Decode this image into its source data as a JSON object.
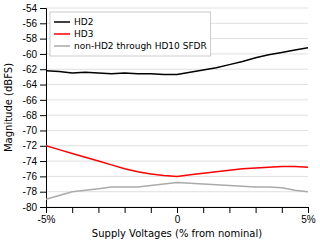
{
  "chart_data": {
    "type": "line",
    "xlabel": "Supply Voltages (% from nominal)",
    "ylabel": "Magnitude (dBFS)",
    "x": [
      -5,
      -4.5,
      -4,
      -3.5,
      -3,
      -2.5,
      -2,
      -1.5,
      -1,
      -0.5,
      0,
      0.5,
      1,
      1.5,
      2,
      2.5,
      3,
      3.5,
      4,
      4.5,
      5
    ],
    "series": [
      {
        "name": "HD2",
        "color": "#000000",
        "values": [
          -62.2,
          -62.3,
          -62.5,
          -62.4,
          -62.5,
          -62.6,
          -62.5,
          -62.6,
          -62.6,
          -62.7,
          -62.7,
          -62.4,
          -62.1,
          -61.8,
          -61.4,
          -61.0,
          -60.5,
          -60.1,
          -59.8,
          -59.5,
          -59.2
        ]
      },
      {
        "name": "HD3",
        "color": "#ff0000",
        "values": [
          -72.0,
          -72.5,
          -73.0,
          -73.5,
          -74.0,
          -74.5,
          -75.0,
          -75.4,
          -75.7,
          -75.9,
          -76.0,
          -75.8,
          -75.6,
          -75.4,
          -75.2,
          -75.0,
          -74.9,
          -74.8,
          -74.7,
          -74.7,
          -74.8
        ]
      },
      {
        "name": "non-HD2 through HD10 SFDR",
        "color": "#aaaaaa",
        "values": [
          -79.0,
          -78.5,
          -78.0,
          -77.8,
          -77.6,
          -77.4,
          -77.4,
          -77.4,
          -77.2,
          -77.0,
          -76.8,
          -76.9,
          -77.0,
          -77.1,
          -77.2,
          -77.3,
          -77.4,
          -77.4,
          -77.5,
          -77.8,
          -78.0
        ]
      }
    ],
    "xlim": [
      -5,
      5
    ],
    "ylim": [
      -80,
      -54
    ],
    "xticks": [
      {
        "value": -5,
        "label": "-5%"
      },
      {
        "value": -4,
        "label": null
      },
      {
        "value": -3,
        "label": null
      },
      {
        "value": -2,
        "label": null
      },
      {
        "value": -1,
        "label": null
      },
      0,
      {
        "value": 1,
        "label": null
      },
      {
        "value": 2,
        "label": null
      },
      {
        "value": 3,
        "label": null
      },
      {
        "value": 4,
        "label": null
      },
      {
        "value": 5,
        "label": "5%"
      }
    ],
    "yticks": [
      -80,
      -78,
      -76,
      -74,
      -72,
      -70,
      -68,
      -66,
      -64,
      -62,
      -60,
      -58,
      -56,
      -54
    ],
    "grid": true,
    "legend": "upper left"
  }
}
